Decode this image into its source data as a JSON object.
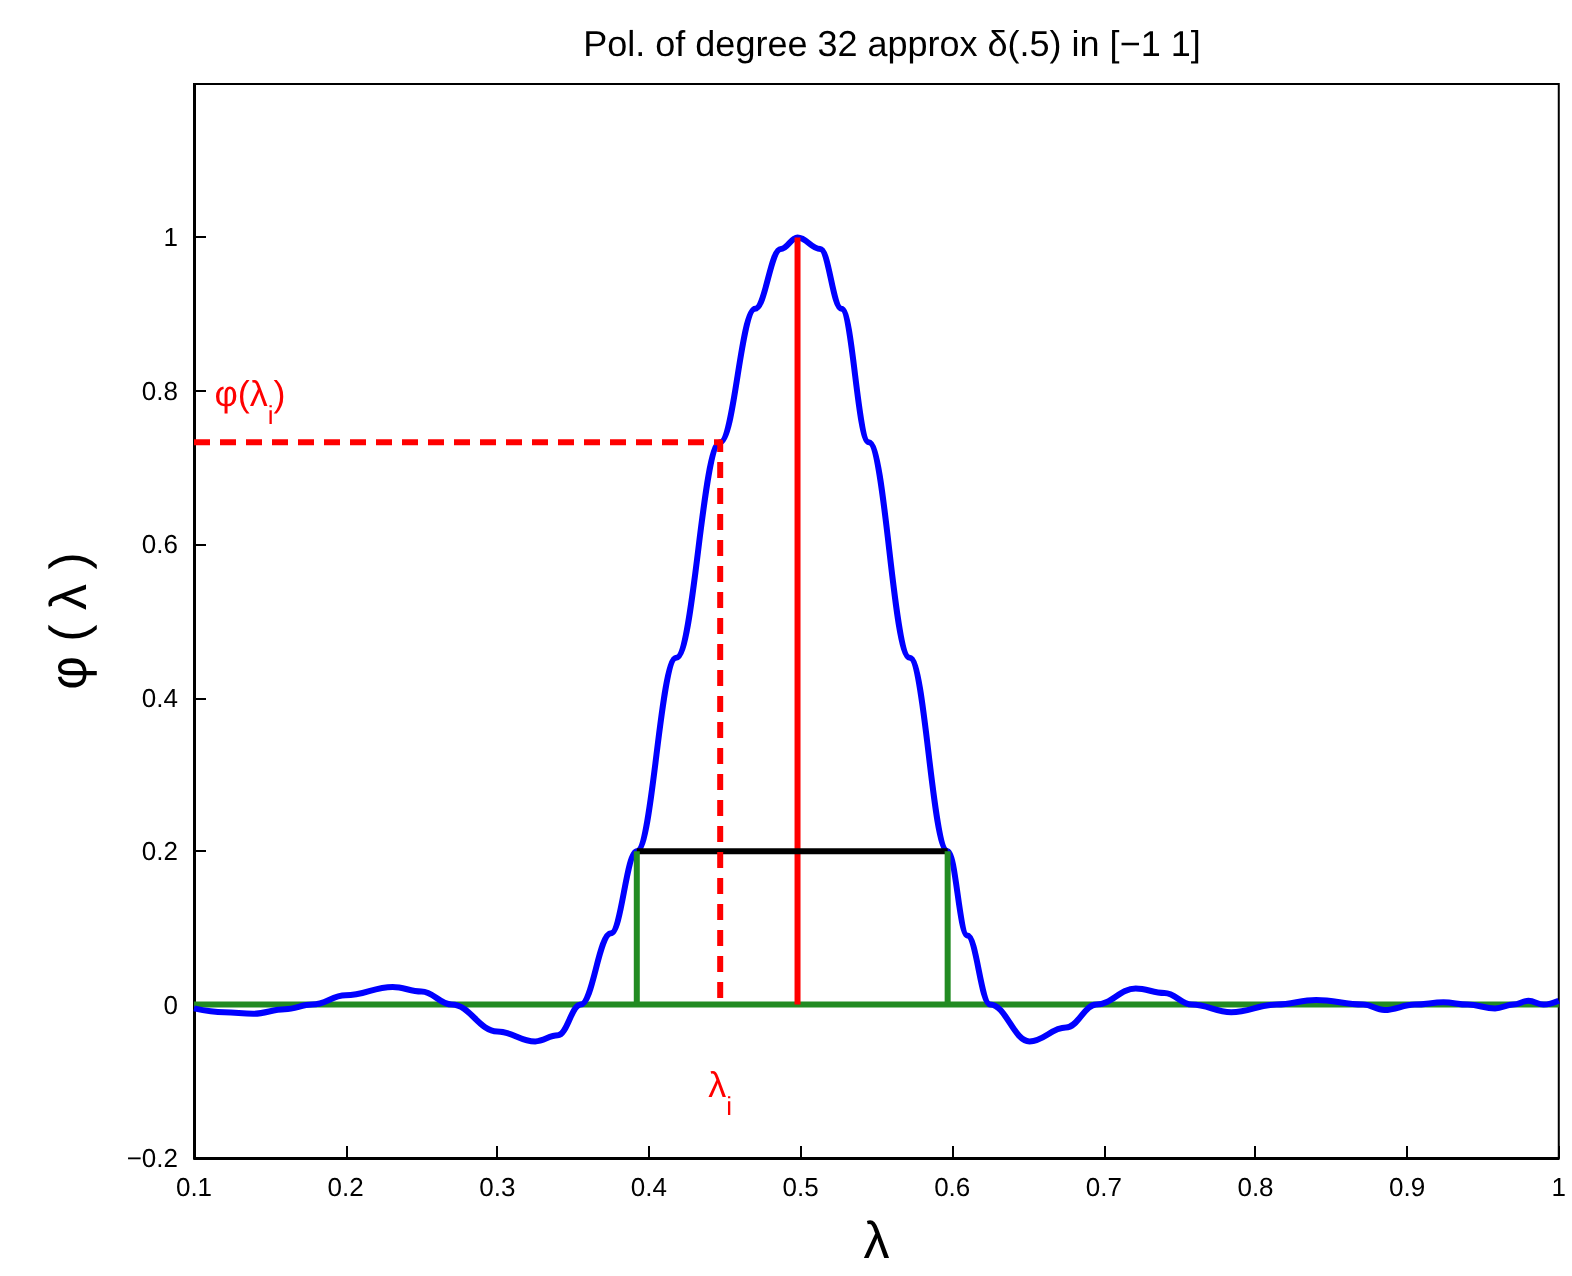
{
  "chart_data": {
    "type": "line",
    "title": "Pol. of degree 32 approx δ(.5) in [−1 1]",
    "xlabel": "λ",
    "ylabel": "φ ( λ )",
    "xlim": [
      0.1,
      1
    ],
    "ylim": [
      -0.2,
      1.2
    ],
    "xticks": [
      0.1,
      0.2,
      0.3,
      0.4,
      0.5,
      0.6,
      0.7,
      0.8,
      0.9,
      1
    ],
    "yticks": [
      {
        "value": -0.2,
        "label": "−0.2"
      },
      0,
      0.2,
      0.4,
      0.6,
      0.8,
      1
    ],
    "grid": false,
    "marker": "none",
    "series": [
      {
        "color": "#228b22",
        "line_style": "solid",
        "x": [
          0.1,
          1
        ],
        "values": [
          0,
          0
        ]
      },
      {
        "color": "#0000ff",
        "line_style": "solid",
        "x": [
          0.1,
          0.12,
          0.139,
          0.16,
          0.178,
          0.2,
          0.231,
          0.25,
          0.27,
          0.3,
          0.325,
          0.34,
          0.355,
          0.375,
          0.392,
          0.418,
          0.447,
          0.47,
          0.487,
          0.498,
          0.513,
          0.527,
          0.545,
          0.572,
          0.597,
          0.61,
          0.625,
          0.651,
          0.675,
          0.695,
          0.721,
          0.74,
          0.758,
          0.784,
          0.814,
          0.84,
          0.871,
          0.885,
          0.905,
          0.924,
          0.94,
          0.958,
          0.97,
          0.98,
          0.99,
          1.0
        ],
        "values": [
          -0.005,
          -0.01,
          -0.012,
          -0.006,
          0,
          0.012,
          0.023,
          0.017,
          0,
          -0.035,
          -0.048,
          -0.04,
          0,
          0.093,
          0.2,
          0.452,
          0.733,
          0.907,
          0.985,
          1,
          0.985,
          0.907,
          0.733,
          0.452,
          0.2,
          0.09,
          0,
          -0.048,
          -0.03,
          0,
          0.021,
          0.015,
          0,
          -0.01,
          0,
          0.006,
          0,
          -0.007,
          0,
          0.003,
          0,
          -0.005,
          0,
          0.005,
          0,
          0.005
        ]
      },
      {
        "color": "#ff0000",
        "line_style": "solid",
        "x": [
          0.498,
          0.498
        ],
        "values": [
          0,
          1
        ]
      },
      {
        "color": "#000000",
        "line_style": "solid",
        "x": [
          0.392,
          0.597
        ],
        "values": [
          0.2,
          0.2
        ]
      },
      {
        "color": "#228b22",
        "line_style": "solid",
        "x": [
          0.392,
          0.392,
          null,
          0.597,
          0.597
        ],
        "values": [
          0,
          0.2,
          null,
          0.2,
          0
        ]
      },
      {
        "color": "#ff0000",
        "line_style": "dashed",
        "x": [
          0.1,
          0.447,
          0.447
        ],
        "values": [
          0.733,
          0.733,
          0
        ]
      }
    ],
    "annotations": [
      "φ(λ$_{i}$)",
      "λ$_{i}$"
    ]
  }
}
